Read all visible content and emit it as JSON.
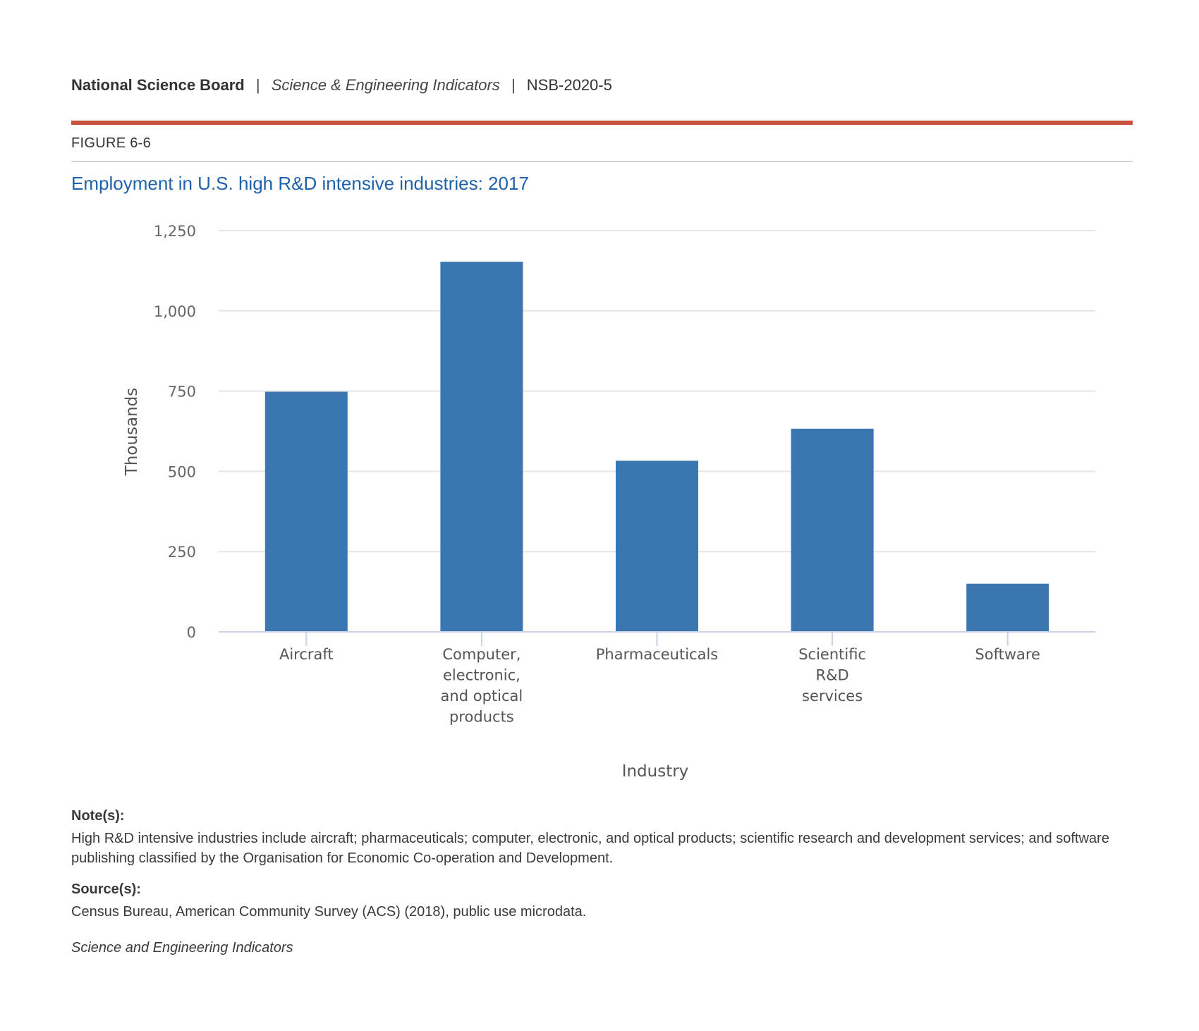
{
  "header": {
    "org": "National Science Board",
    "sep1": "|",
    "publication": "Science & Engineering Indicators",
    "sep2": "|",
    "report_id": "NSB-2020-5"
  },
  "figure_label": "FIGURE 6-6",
  "colors": {
    "accent_rule": "#c8503a",
    "title": "#1f62aa",
    "bar": "#3a77b0",
    "grid": "#e6e6e6",
    "axis": "#c9d3e6"
  },
  "chart_data": {
    "type": "bar",
    "title": "Employment in U.S. high R&D intensive industries: 2017",
    "xlabel": "Industry",
    "ylabel": "Thousands",
    "ylim": [
      0,
      1250
    ],
    "yticks": [
      0,
      250,
      500,
      750,
      1000,
      1250
    ],
    "ytick_labels": [
      "0",
      "250",
      "500",
      "750",
      "1,000",
      "1,250"
    ],
    "grid": true,
    "legend": "none",
    "categories": [
      [
        "Aircraft"
      ],
      [
        "Computer,",
        "electronic,",
        "and optical",
        "products"
      ],
      [
        "Pharmaceuticals"
      ],
      [
        "Scientific",
        "R&D",
        "services"
      ],
      [
        "Software"
      ]
    ],
    "values": [
      748,
      1153,
      533,
      633,
      150
    ]
  },
  "notes": {
    "heading": "Note(s):",
    "text": "High R&D intensive industries include aircraft; pharmaceuticals; computer, electronic, and optical products; scientific research and development services; and software publishing classified by the Organisation for Economic Co-operation and Development."
  },
  "sources": {
    "heading": "Source(s):",
    "text": "Census Bureau, American Community Survey (ACS) (2018), public use microdata."
  },
  "footer": "Science and Engineering Indicators"
}
